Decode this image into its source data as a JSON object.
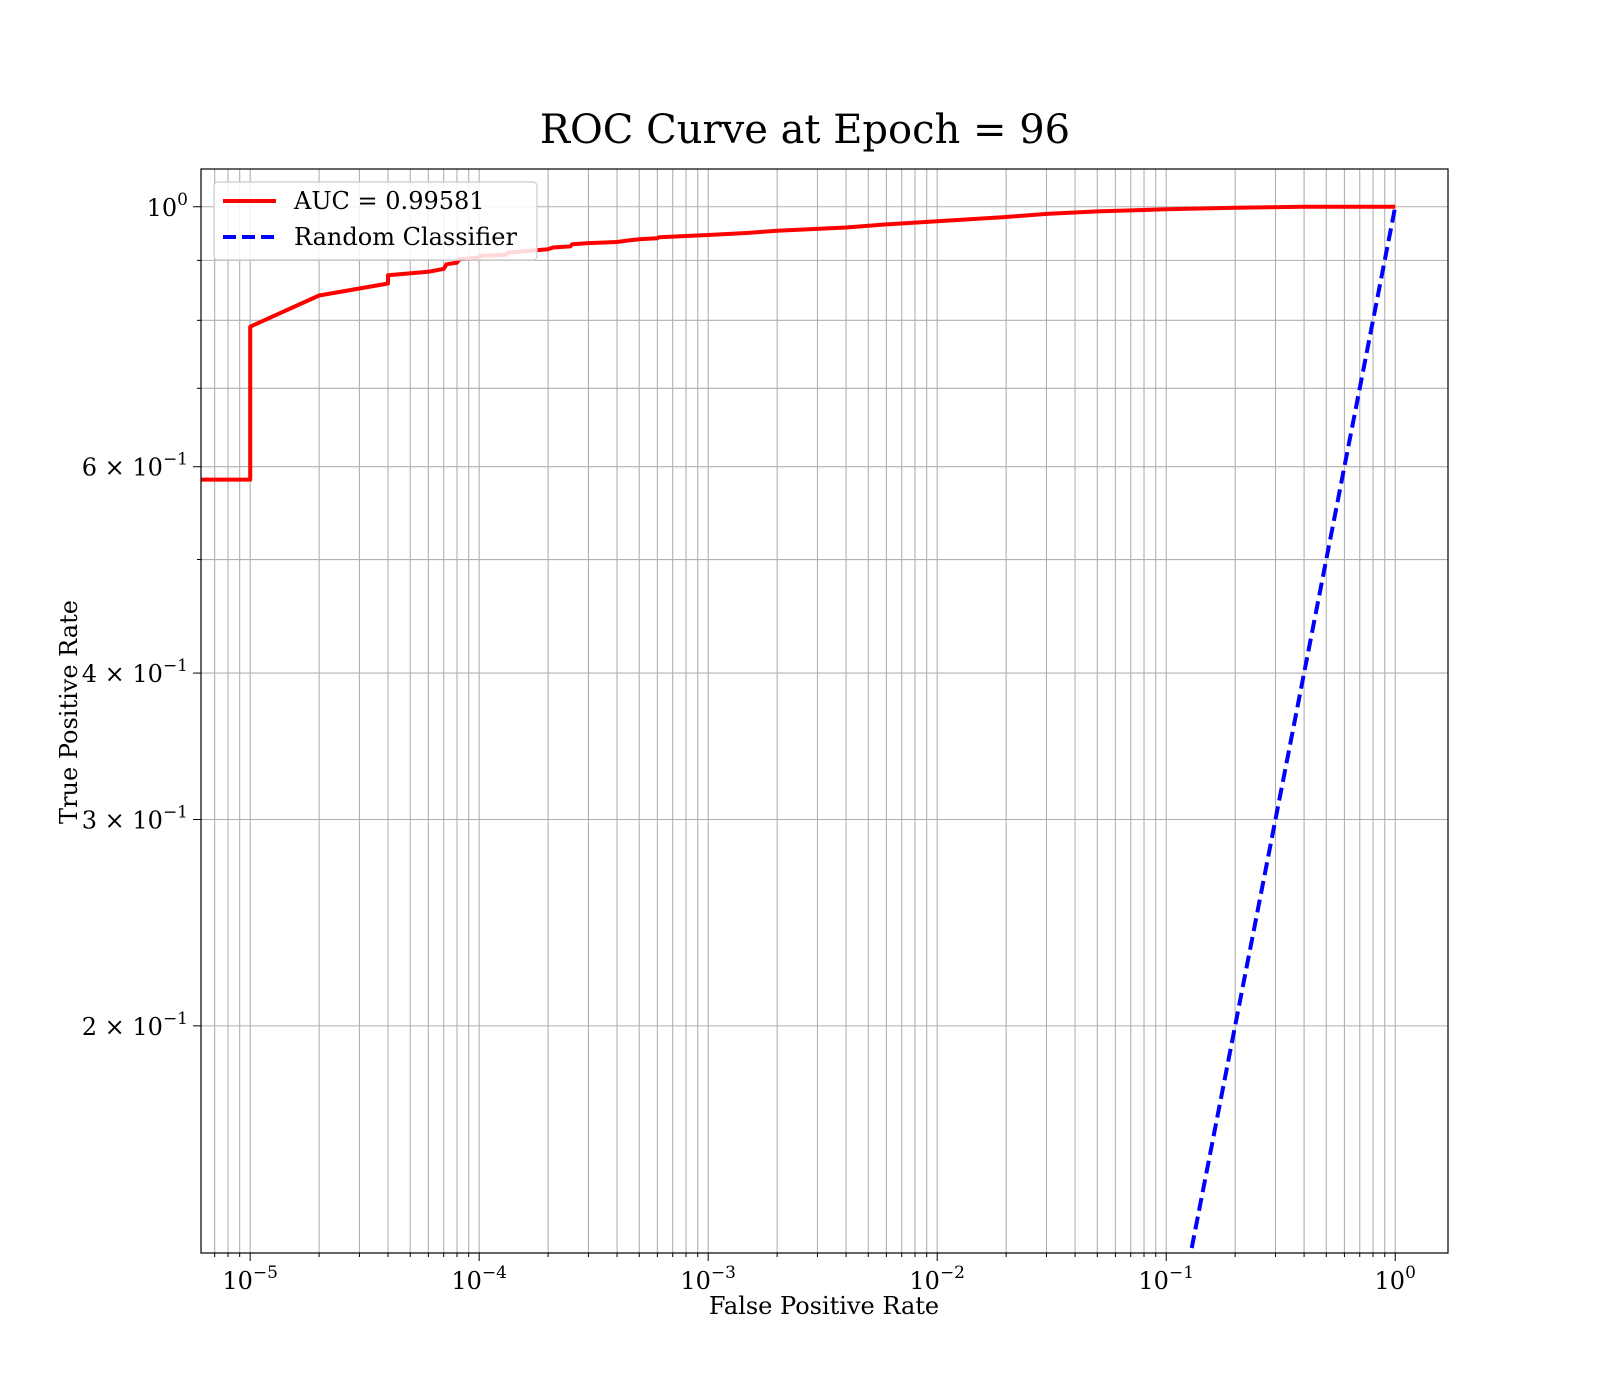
{
  "chart_data": {
    "type": "line",
    "title": "ROC Curve at Epoch = 96",
    "xlabel": "False Positive Rate",
    "ylabel": "True Positive Rate",
    "xscale": "log",
    "yscale": "log",
    "xlim": [
      6.1e-06,
      1.7
    ],
    "ylim": [
      0.128,
      1.077
    ],
    "grid": "major and minor",
    "legend_position": "upper-left",
    "x_ticks": [
      {
        "value": 1e-05,
        "base": "10",
        "exp": "−5"
      },
      {
        "value": 0.0001,
        "base": "10",
        "exp": "−4"
      },
      {
        "value": 0.001,
        "base": "10",
        "exp": "−3"
      },
      {
        "value": 0.01,
        "base": "10",
        "exp": "−2"
      },
      {
        "value": 0.1,
        "base": "10",
        "exp": "−1"
      },
      {
        "value": 1,
        "base": "10",
        "exp": "0"
      }
    ],
    "y_ticks": [
      {
        "value": 1.0,
        "mantissa": "",
        "base": "10",
        "exp": "0"
      },
      {
        "value": 0.6,
        "mantissa": "6",
        "base": "10",
        "exp": "−1"
      },
      {
        "value": 0.4,
        "mantissa": "4",
        "base": "10",
        "exp": "−1"
      },
      {
        "value": 0.3,
        "mantissa": "3",
        "base": "10",
        "exp": "−1"
      },
      {
        "value": 0.2,
        "mantissa": "2",
        "base": "10",
        "exp": "−1"
      }
    ],
    "y_minor_ticks": [
      0.5,
      0.7,
      0.8,
      0.9
    ],
    "series": [
      {
        "name": "AUC = 0.99581",
        "color": "#ff0000",
        "style": "solid",
        "x": [
          5e-06,
          1e-05,
          1e-05,
          2e-05,
          4e-05,
          4e-05,
          6e-05,
          7e-05,
          7.2e-05,
          8e-05,
          8.2e-05,
          0.0001,
          0.000101,
          0.00013,
          0.000135,
          0.0002,
          0.00021,
          0.00025,
          0.000255,
          0.0003,
          0.0004,
          0.00045,
          0.0005,
          0.0006,
          0.00061,
          0.001,
          0.0015,
          0.002,
          0.004,
          0.006,
          0.01,
          0.02,
          0.03,
          0.05,
          0.1,
          0.2,
          0.4,
          1
        ],
        "y": [
          0.585,
          0.585,
          0.79,
          0.84,
          0.86,
          0.874,
          0.88,
          0.885,
          0.893,
          0.896,
          0.902,
          0.905,
          0.908,
          0.91,
          0.914,
          0.92,
          0.923,
          0.925,
          0.929,
          0.931,
          0.933,
          0.936,
          0.938,
          0.94,
          0.942,
          0.946,
          0.95,
          0.954,
          0.96,
          0.966,
          0.972,
          0.98,
          0.986,
          0.991,
          0.995,
          0.998,
          1.0,
          1.0
        ]
      },
      {
        "name": "Random Classifier",
        "color": "#0000ff",
        "style": "dashed",
        "x": [
          0.1,
          1
        ],
        "y": [
          0.1,
          1
        ]
      }
    ]
  }
}
